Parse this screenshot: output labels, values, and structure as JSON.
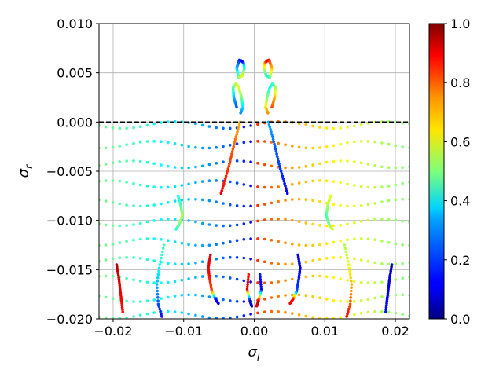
{
  "chart_data": {
    "type": "scatter",
    "title": "",
    "xlabel": "σ",
    "xlabel_sub": "i",
    "ylabel": "σ",
    "ylabel_sub": "r",
    "xlim": [
      -0.022,
      0.022
    ],
    "ylim": [
      -0.02,
      0.01
    ],
    "x_ticks": [
      -0.02,
      -0.01,
      0.0,
      0.01,
      0.02
    ],
    "x_tick_labels": [
      "−0.02",
      "−0.01",
      "0.00",
      "0.01",
      "0.02"
    ],
    "y_ticks": [
      0.01,
      0.005,
      0.0,
      -0.005,
      -0.01,
      -0.015,
      -0.02
    ],
    "y_tick_labels": [
      "0.010",
      "0.005",
      "0.000",
      "−0.005",
      "−0.010",
      "−0.015",
      "−0.020"
    ],
    "grid": true,
    "reference_line": {
      "y": 0.0,
      "style": "dashed",
      "color": "#000000"
    },
    "colormap": "jet",
    "colorbar": {
      "range": [
        0.0,
        1.0
      ],
      "ticks": [
        0.0,
        0.2,
        0.4,
        0.6,
        0.8,
        1.0
      ],
      "tick_labels": [
        "0.0",
        "0.2",
        "0.4",
        "0.6",
        "0.8",
        "1.0"
      ]
    },
    "point_families": {
      "left_right_symmetry": true,
      "horizontal_bands": {
        "y_levels": [
          -0.0003,
          -0.0023,
          -0.0043,
          -0.0063,
          -0.0082,
          -0.0102,
          -0.0122,
          -0.0141,
          -0.016,
          -0.0179,
          -0.0196
        ],
        "x_range": [
          -0.022,
          0.022
        ],
        "points_per_band": 46,
        "color_value_at_edge": 0.5,
        "color_value_at_center_right": 0.85,
        "color_value_at_center_left": 0.1
      },
      "curved_branches": [
        {
          "name": "",
          "x": [
            0.0018,
            0.0021,
            0.0025,
            0.0022,
            0.0017,
            0.0014,
            0.0015,
            0.0018
          ],
          "y": [
            0.0062,
            0.0063,
            0.0055,
            0.0045,
            0.0047,
            0.0054,
            0.006,
            0.0062
          ],
          "c": [
            0.9,
            0.85,
            0.7,
            0.5,
            0.4,
            0.55,
            0.7,
            0.9
          ]
        },
        {
          "name": "",
          "x": [
            0.0025,
            0.0029,
            0.003,
            0.0026,
            0.0022,
            0.0018,
            0.0016,
            0.002
          ],
          "y": [
            0.0015,
            0.0025,
            0.0035,
            0.0039,
            0.0035,
            0.0025,
            0.0015,
            0.0008
          ],
          "c": [
            0.8,
            0.7,
            0.55,
            0.45,
            0.4,
            0.5,
            0.65,
            0.75
          ]
        },
        {
          "name": "",
          "x": [
            0.002,
            0.0026,
            0.0031,
            0.0036,
            0.0042,
            0.0048
          ],
          "y": [
            0.0,
            -0.0015,
            -0.003,
            -0.0045,
            -0.006,
            -0.0075
          ],
          "c": [
            0.3,
            0.25,
            0.2,
            0.18,
            0.15,
            0.1
          ]
        },
        {
          "name": "",
          "x": [
            0.0062,
            0.0065,
            0.0063,
            0.006,
            0.0055,
            0.005
          ],
          "y": [
            -0.0135,
            -0.0148,
            -0.016,
            -0.0172,
            -0.018,
            -0.0185
          ],
          "c": [
            0.1,
            0.1,
            0.15,
            0.2,
            0.85,
            0.9
          ]
        },
        {
          "name": "",
          "x": [
            0.0108,
            0.0104,
            0.0102,
            0.0106,
            0.0112
          ],
          "y": [
            -0.0075,
            -0.0085,
            -0.0095,
            -0.0104,
            -0.011
          ],
          "c": [
            0.6,
            0.55,
            0.45,
            0.5,
            0.6
          ]
        },
        {
          "name": "",
          "x": [
            0.0128,
            0.0134,
            0.0138,
            0.0136,
            0.013
          ],
          "y": [
            -0.0125,
            -0.0145,
            -0.0165,
            -0.0185,
            -0.02
          ],
          "c": [
            0.55,
            0.6,
            0.7,
            0.8,
            0.9
          ]
        },
        {
          "name": "",
          "x": [
            0.0008,
            0.001,
            0.0006,
            0.0003
          ],
          "y": [
            -0.0155,
            -0.017,
            -0.0182,
            -0.0188
          ],
          "c": [
            0.15,
            0.1,
            0.95,
            0.9
          ]
        },
        {
          "name": "",
          "x": [
            0.0195,
            0.0192,
            0.019,
            0.0188,
            0.0186
          ],
          "y": [
            -0.0145,
            -0.0158,
            -0.017,
            -0.0182,
            -0.0195
          ],
          "c": [
            0.05,
            0.08,
            0.1,
            0.12,
            0.15
          ]
        }
      ]
    }
  }
}
